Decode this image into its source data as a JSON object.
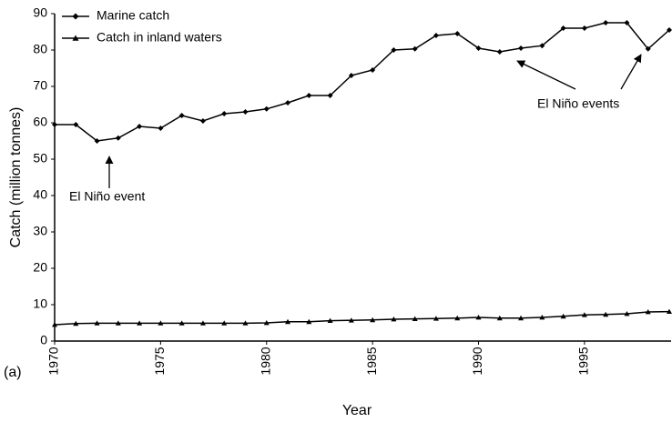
{
  "chart_data": {
    "type": "line",
    "x": [
      1970,
      1971,
      1972,
      1973,
      1974,
      1975,
      1976,
      1977,
      1978,
      1979,
      1980,
      1981,
      1982,
      1983,
      1984,
      1985,
      1986,
      1987,
      1988,
      1989,
      1990,
      1991,
      1992,
      1993,
      1994,
      1995,
      1996,
      1997,
      1998,
      1999
    ],
    "series": [
      {
        "name": "Marine catch",
        "color": "#000000",
        "marker": "diamond",
        "values": [
          59.5,
          59.5,
          55,
          55.8,
          59,
          58.5,
          62,
          60.5,
          62.5,
          63,
          63.8,
          65.5,
          67.5,
          67.5,
          73,
          74.5,
          80,
          80.3,
          84,
          84.5,
          80.5,
          79.5,
          80.5,
          81.2,
          86,
          86,
          87.5,
          87.5,
          80.3,
          85.5
        ]
      },
      {
        "name": "Catch in inland waters",
        "color": "#000000",
        "marker": "triangle",
        "values": [
          4.5,
          4.8,
          4.9,
          4.9,
          4.9,
          4.9,
          4.9,
          4.9,
          4.9,
          4.9,
          5.0,
          5.3,
          5.3,
          5.6,
          5.7,
          5.8,
          6.0,
          6.1,
          6.2,
          6.3,
          6.5,
          6.3,
          6.3,
          6.5,
          6.8,
          7.2,
          7.3,
          7.5,
          8.0,
          8.1
        ]
      }
    ],
    "xlabel": "Year",
    "ylabel": "Catch (million tonnes)",
    "xlim": [
      1970,
      1999
    ],
    "xticks": [
      1970,
      1975,
      1980,
      1985,
      1990,
      1995
    ],
    "ylim": [
      0,
      90
    ],
    "yticks": [
      0,
      10,
      20,
      30,
      40,
      50,
      60,
      70,
      80,
      90
    ],
    "panel_label": "(a)",
    "annotations": [
      "El Niño event",
      "El Niño events"
    ],
    "legend": "upper left",
    "grid": false
  }
}
